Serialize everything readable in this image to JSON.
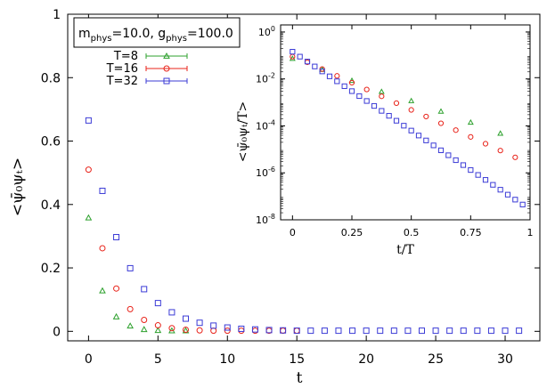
{
  "chart_data": [
    {
      "type": "scatter",
      "title": "",
      "xlabel": "t",
      "ylabel": "<ψ̄₀ψₜ>",
      "xlim": [
        -1.5,
        32.5
      ],
      "ylim": [
        -0.03,
        1.0
      ],
      "xticks": [
        0,
        5,
        10,
        15,
        20,
        25,
        30
      ],
      "yticks": [
        0,
        0.2,
        0.4,
        0.6,
        0.8,
        1
      ],
      "xtick_labels": [
        "0",
        "5",
        "10",
        "15",
        "20",
        "25",
        "30"
      ],
      "ytick_labels": [
        "0",
        "0.2",
        "0.4",
        "0.6",
        "0.8",
        "1"
      ],
      "legend": {
        "placement": "top-left",
        "header": "m",
        "header_parts": [
          "m",
          "phys",
          "=10.0, g",
          "phys",
          "=100.0"
        ],
        "entries": [
          "T=8",
          "T=16",
          "T=32"
        ]
      },
      "series": [
        {
          "name": "T=8",
          "color": "#2ca02c",
          "marker": "triangle",
          "x": [
            0,
            1,
            2,
            3,
            4,
            5,
            6,
            7
          ],
          "y": [
            0.358,
            0.128,
            0.046,
            0.017,
            0.006,
            0.003,
            0.002,
            0.002
          ]
        },
        {
          "name": "T=16",
          "color": "#e8231a",
          "marker": "circle",
          "x": [
            0,
            1,
            2,
            3,
            4,
            5,
            6,
            7,
            8,
            9,
            10,
            11,
            12,
            13,
            14,
            15
          ],
          "y": [
            0.51,
            0.262,
            0.135,
            0.07,
            0.036,
            0.019,
            0.01,
            0.005,
            0.003,
            0.002,
            0.002,
            0.002,
            0.002,
            0.002,
            0.002,
            0.002
          ]
        },
        {
          "name": "T=32",
          "color": "#3b3bd6",
          "marker": "square",
          "x": [
            0,
            1,
            2,
            3,
            4,
            5,
            6,
            7,
            8,
            9,
            10,
            11,
            12,
            13,
            14,
            15,
            16,
            17,
            18,
            19,
            20,
            21,
            22,
            23,
            24,
            25,
            26,
            27,
            28,
            29,
            30,
            31
          ],
          "y": [
            0.665,
            0.443,
            0.297,
            0.199,
            0.133,
            0.089,
            0.06,
            0.04,
            0.027,
            0.018,
            0.012,
            0.008,
            0.006,
            0.004,
            0.003,
            0.002,
            0.002,
            0.002,
            0.002,
            0.002,
            0.002,
            0.002,
            0.002,
            0.002,
            0.002,
            0.002,
            0.002,
            0.002,
            0.002,
            0.002,
            0.002,
            0.002
          ]
        }
      ]
    },
    {
      "type": "scatter",
      "title": "",
      "xlabel": "t/T",
      "ylabel": "<ψ̄₀ψₜ/T>",
      "log_y": true,
      "xlim": [
        -0.05,
        1.0
      ],
      "ylim": [
        1e-08,
        2
      ],
      "xticks": [
        0,
        0.25,
        0.5,
        0.75,
        1
      ],
      "xtick_labels": [
        "0",
        "0.25",
        "0.5",
        "0.75",
        "1"
      ],
      "yticks": [
        1e-08,
        1e-06,
        0.0001,
        0.01,
        1
      ],
      "ytick_labels": [
        {
          "base": "10",
          "exp": "-8"
        },
        {
          "base": "10",
          "exp": "-6"
        },
        {
          "base": "10",
          "exp": "-4"
        },
        {
          "base": "10",
          "exp": "-2"
        },
        {
          "base": "10",
          "exp": "0"
        }
      ],
      "series": [
        {
          "name": "T=8",
          "color": "#2ca02c",
          "marker": "triangle",
          "x": [
            0,
            0.125,
            0.25,
            0.375,
            0.5,
            0.625,
            0.75,
            0.875
          ],
          "y": [
            0.0741,
            0.0251,
            0.00851,
            0.00288,
            0.00117,
            0.000417,
            0.000141,
            4.79e-05
          ]
        },
        {
          "name": "T=16",
          "color": "#e8231a",
          "marker": "circle",
          "x": [
            0,
            0.0625,
            0.125,
            0.1875,
            0.25,
            0.3125,
            0.375,
            0.4375,
            0.5,
            0.5625,
            0.625,
            0.6875,
            0.75,
            0.8125,
            0.875,
            0.9375
          ],
          "y": [
            0.0891,
            0.0513,
            0.0263,
            0.0135,
            0.00692,
            0.00355,
            0.00182,
            0.000933,
            0.000479,
            0.000251,
            0.000129,
            6.61e-05,
            3.39e-05,
            1.74e-05,
            8.9e-06,
            4.57e-06
          ]
        },
        {
          "name": "T=32",
          "color": "#3b3bd6",
          "marker": "square",
          "x": [
            0,
            0.03125,
            0.0625,
            0.09375,
            0.125,
            0.15625,
            0.1875,
            0.21875,
            0.25,
            0.28125,
            0.3125,
            0.34375,
            0.375,
            0.40625,
            0.4375,
            0.46875,
            0.5,
            0.53125,
            0.5625,
            0.59375,
            0.625,
            0.65625,
            0.6875,
            0.71875,
            0.75,
            0.78125,
            0.8125,
            0.84375,
            0.875,
            0.90625,
            0.9375,
            0.96875
          ],
          "y": [
            0.1445,
            0.0891,
            0.055,
            0.034,
            0.0209,
            0.0129,
            0.00794,
            0.0049,
            0.00302,
            0.00186,
            0.00115,
            0.000708,
            0.000437,
            0.000269,
            0.000166,
            0.000102,
            6.31e-05,
            3.89e-05,
            2.4e-05,
            1.48e-05,
            9.12e-06,
            5.62e-06,
            3.47e-06,
            2.14e-06,
            1.32e-06,
            8.13e-07,
            5.01e-07,
            3.09e-07,
            1.91e-07,
            1.18e-07,
            7.24e-08,
            4.47e-08
          ]
        }
      ]
    }
  ]
}
